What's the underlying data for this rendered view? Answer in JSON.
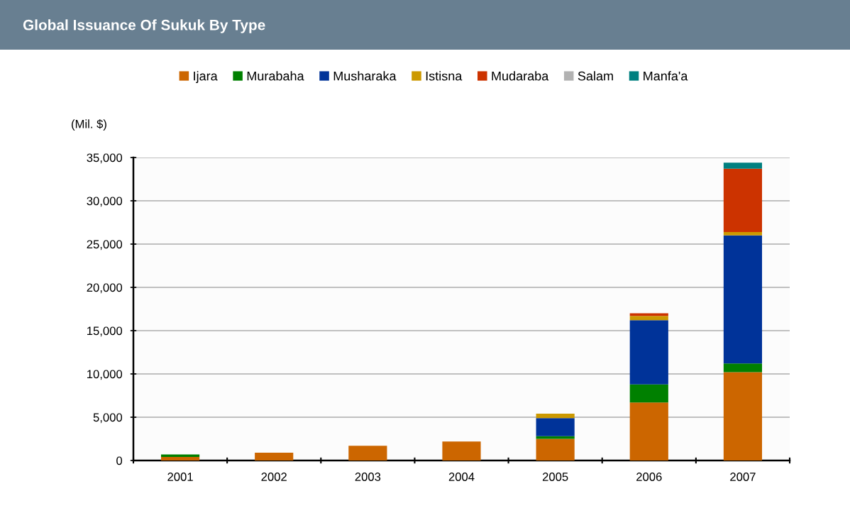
{
  "chart_data": {
    "type": "bar",
    "title": "Global Issuance Of Sukuk By Type",
    "ylabel": "(Mil. $)",
    "categories": [
      "2001",
      "2002",
      "2003",
      "2004",
      "2005",
      "2006",
      "2007"
    ],
    "stacked": true,
    "series": [
      {
        "name": "Ijara",
        "color": "#cc6600",
        "values": [
          400,
          900,
          1700,
          2200,
          2500,
          6700,
          10200
        ]
      },
      {
        "name": "Murabaha",
        "color": "#008000",
        "values": [
          300,
          null,
          null,
          null,
          300,
          2100,
          1000
        ]
      },
      {
        "name": "Musharaka",
        "color": "#003399",
        "values": [
          null,
          null,
          null,
          null,
          2100,
          7400,
          14800
        ]
      },
      {
        "name": "Istisna",
        "color": "#cc9900",
        "values": [
          null,
          null,
          null,
          null,
          500,
          500,
          400
        ]
      },
      {
        "name": "Mudaraba",
        "color": "#cc3300",
        "values": [
          null,
          null,
          null,
          null,
          null,
          300,
          7300
        ]
      },
      {
        "name": "Salam",
        "color": "#b2b2b2",
        "values": [
          null,
          null,
          null,
          null,
          null,
          null,
          null
        ]
      },
      {
        "name": "Manfa'a",
        "color": "#008080",
        "values": [
          null,
          null,
          null,
          null,
          null,
          null,
          700
        ]
      }
    ],
    "ylim": [
      0,
      35000
    ],
    "yticks": [
      {
        "value": 0,
        "label": "0"
      },
      {
        "value": 5000,
        "label": "5,000"
      },
      {
        "value": 10000,
        "label": "10,000"
      },
      {
        "value": 15000,
        "label": "15,000"
      },
      {
        "value": 20000,
        "label": "20,000"
      },
      {
        "value": 25000,
        "label": "25,000"
      },
      {
        "value": 30000,
        "label": "30,000"
      },
      {
        "value": 35000,
        "label": "35,000"
      }
    ],
    "grid": "y",
    "legend": "top"
  }
}
